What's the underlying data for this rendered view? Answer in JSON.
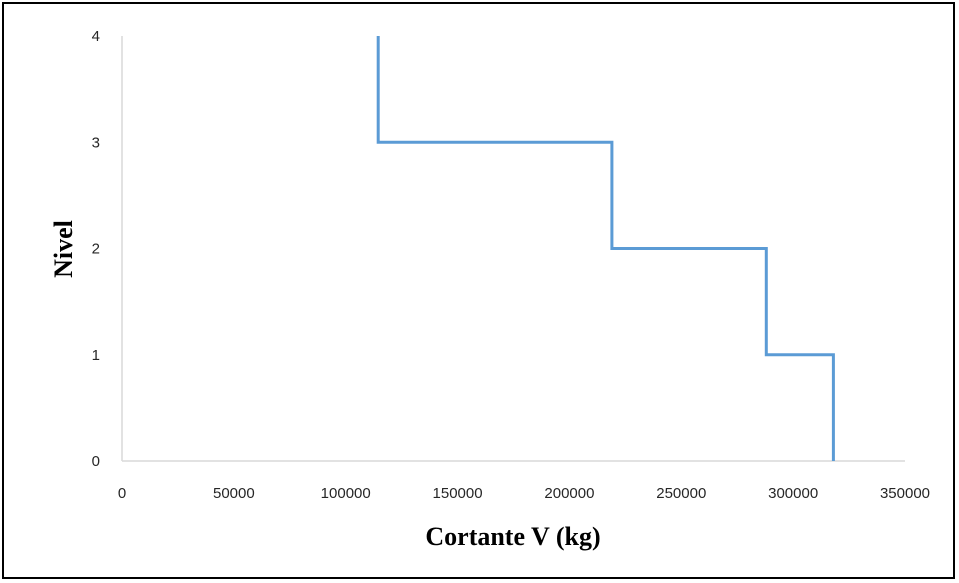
{
  "chart_data": {
    "type": "line",
    "step": true,
    "title": "",
    "xlabel": "Cortante V (kg)",
    "ylabel": "Nivel",
    "xlim": [
      0,
      350000
    ],
    "ylim": [
      0,
      4
    ],
    "x_ticks": [
      0,
      50000,
      100000,
      150000,
      200000,
      250000,
      300000,
      350000
    ],
    "y_ticks": [
      0,
      1,
      2,
      3,
      4
    ],
    "grid": false,
    "legend": "none",
    "series": [
      {
        "color": "#5b9bd5",
        "points": [
          {
            "x": 114500,
            "y": 4
          },
          {
            "x": 114500,
            "y": 3
          },
          {
            "x": 219000,
            "y": 3
          },
          {
            "x": 219000,
            "y": 2
          },
          {
            "x": 288000,
            "y": 2
          },
          {
            "x": 288000,
            "y": 1
          },
          {
            "x": 318000,
            "y": 1
          },
          {
            "x": 318000,
            "y": 0
          }
        ]
      }
    ]
  }
}
